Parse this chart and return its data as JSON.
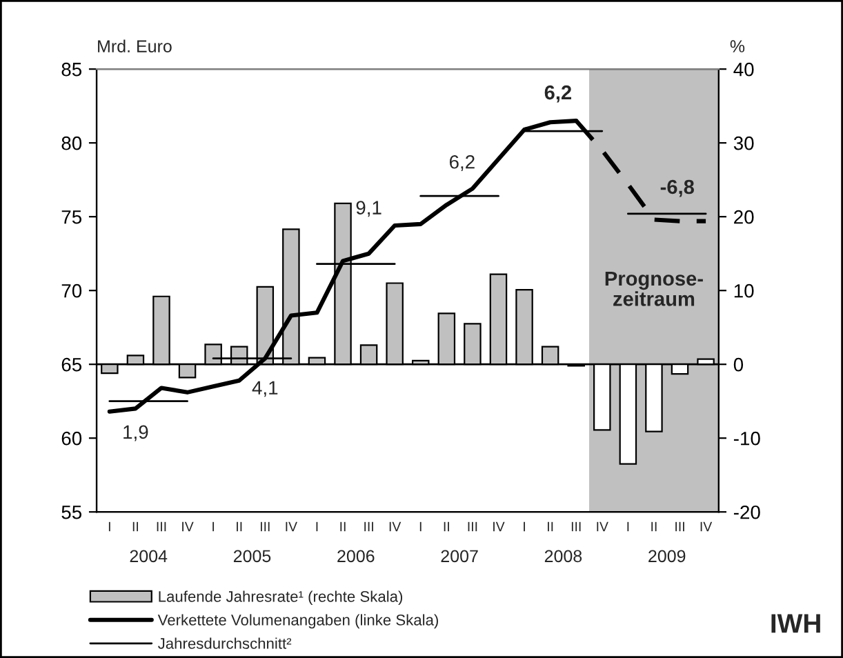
{
  "chart_data": {
    "type": "bar",
    "categories": [
      "I",
      "II",
      "III",
      "IV",
      "I",
      "II",
      "III",
      "IV",
      "I",
      "II",
      "III",
      "IV",
      "I",
      "II",
      "III",
      "IV",
      "I",
      "II",
      "III",
      "IV",
      "I",
      "II",
      "III",
      "IV"
    ],
    "ylabel": "Mrd. Euro",
    "y2label": "%",
    "ylim": [
      55,
      85
    ],
    "yticks": [
      55,
      60,
      65,
      70,
      75,
      80,
      85
    ],
    "y2lim": [
      -20,
      40
    ],
    "y2ticks": [
      -20,
      -10,
      0,
      10,
      20,
      30,
      40
    ],
    "series": [
      {
        "name": "Laufende Jahresrate¹ (rechte Skala)",
        "axis": "y2",
        "colors": [
          "#c0c0c0",
          "#c0c0c0",
          "#c0c0c0",
          "#c0c0c0",
          "#c0c0c0",
          "#c0c0c0",
          "#c0c0c0",
          "#c0c0c0",
          "#c0c0c0",
          "#c0c0c0",
          "#c0c0c0",
          "#c0c0c0",
          "#c0c0c0",
          "#c0c0c0",
          "#c0c0c0",
          "#c0c0c0",
          "#c0c0c0",
          "#c0c0c0",
          "#c0c0c0",
          "#ffffff",
          "#ffffff",
          "#ffffff",
          "#ffffff",
          "#ffffff"
        ],
        "values": [
          -1.2,
          1.2,
          9.2,
          -1.8,
          2.7,
          2.4,
          10.5,
          18.3,
          0.9,
          21.8,
          2.6,
          11,
          0.5,
          6.9,
          5.5,
          12.2,
          10.1,
          2.4,
          -0.2,
          -8.9,
          -13.5,
          -9.1,
          -1.3,
          0.7
        ]
      },
      {
        "name": "Verkettete Volumenangaben (linke Skala)",
        "type": "line",
        "color": "#000000",
        "line_style": "solid",
        "values": [
          61.8,
          62.0,
          63.4,
          63.1,
          63.5,
          63.9,
          65.4,
          68.3,
          68.5,
          72.0,
          72.5,
          74.4,
          74.5,
          75.8,
          76.9,
          78.9,
          80.9,
          81.4,
          81.5,
          null,
          null,
          null,
          null,
          null
        ]
      },
      {
        "type": "line",
        "color": "#000000",
        "line_style": "dashed",
        "values": [
          null,
          null,
          null,
          null,
          null,
          null,
          null,
          null,
          null,
          null,
          null,
          null,
          null,
          null,
          null,
          null,
          null,
          null,
          81.5,
          79.5,
          77.2,
          74.8,
          74.7,
          74.7
        ]
      },
      {
        "name": "Jahresdurchschnitt²",
        "type": "step",
        "color": "#000000",
        "values": [
          62.5,
          62.5,
          62.5,
          62.5,
          null,
          null,
          null,
          null,
          null,
          null,
          null,
          null,
          null,
          null,
          null,
          null,
          null,
          null,
          null,
          null,
          null,
          null,
          null,
          null
        ]
      },
      {
        "type": "step",
        "color": "#000000",
        "values": [
          null,
          null,
          null,
          null,
          65.4,
          65.4,
          65.4,
          65.4,
          null,
          null,
          null,
          null,
          null,
          null,
          null,
          null,
          null,
          null,
          null,
          null,
          null,
          null,
          null,
          null
        ]
      },
      {
        "type": "step",
        "color": "#000000",
        "values": [
          null,
          null,
          null,
          null,
          null,
          null,
          null,
          null,
          71.8,
          71.8,
          71.8,
          71.8,
          null,
          null,
          null,
          null,
          null,
          null,
          null,
          null,
          null,
          null,
          null,
          null
        ]
      },
      {
        "type": "step",
        "color": "#000000",
        "values": [
          null,
          null,
          null,
          null,
          null,
          null,
          null,
          null,
          null,
          null,
          null,
          null,
          76.4,
          76.4,
          76.4,
          76.4,
          null,
          null,
          null,
          null,
          null,
          null,
          null,
          null
        ]
      },
      {
        "type": "step",
        "color": "#000000",
        "values": [
          null,
          null,
          null,
          null,
          null,
          null,
          null,
          null,
          null,
          null,
          null,
          null,
          null,
          null,
          null,
          null,
          80.8,
          80.8,
          80.8,
          80.8,
          null,
          null,
          null,
          null
        ]
      },
      {
        "type": "step",
        "color": "#000000",
        "values": [
          null,
          null,
          null,
          null,
          null,
          null,
          null,
          null,
          null,
          null,
          null,
          null,
          null,
          null,
          null,
          null,
          null,
          null,
          null,
          null,
          75.2,
          75.2,
          75.2,
          75.2
        ]
      }
    ],
    "annotations": [
      "1,9",
      "4,1",
      "9,1",
      "6,2",
      "6,2",
      "-6,8",
      "Prognose-\nzeitraum",
      "2004",
      "2005",
      "2006",
      "2007",
      "2008",
      "2009",
      "IWH"
    ],
    "legend": "bottom",
    "grid": false
  }
}
